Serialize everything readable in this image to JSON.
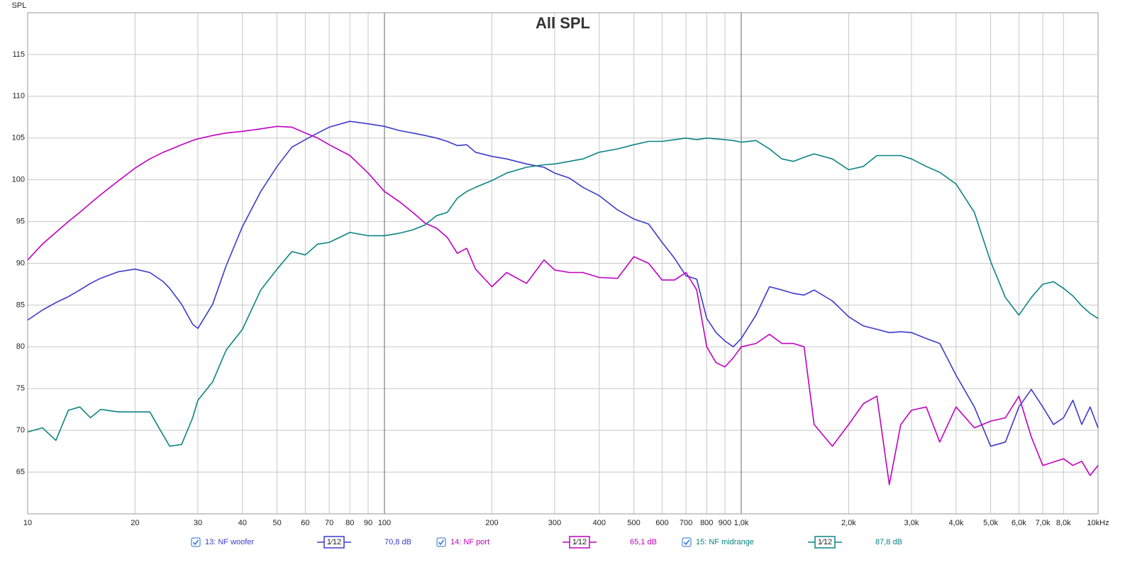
{
  "chart_data": {
    "type": "line",
    "title": "All SPL",
    "y_label": "SPL",
    "log_x": true,
    "grid": true,
    "xlim": [
      10,
      10000
    ],
    "ylim": [
      60,
      120
    ],
    "yticks": [
      65,
      70,
      75,
      80,
      85,
      90,
      95,
      100,
      105,
      110,
      115
    ],
    "xticks": [
      10,
      20,
      30,
      40,
      50,
      60,
      70,
      80,
      90,
      100,
      200,
      300,
      400,
      500,
      600,
      700,
      800,
      900,
      {
        "value": 1000,
        "label": "1,0k"
      },
      {
        "value": 2000,
        "label": "2,0k"
      },
      {
        "value": 3000,
        "label": "3,0k"
      },
      {
        "value": 4000,
        "label": "4,0k"
      },
      {
        "value": 5000,
        "label": "5,0k"
      },
      {
        "value": 6000,
        "label": "6,0k"
      },
      {
        "value": 7000,
        "label": "7,0k"
      },
      {
        "value": 8000,
        "label": "8,0k"
      },
      {
        "value": 10000,
        "label": "10kHz"
      }
    ],
    "x": [
      10,
      11,
      12,
      13,
      14,
      15,
      16,
      18,
      20,
      22,
      24,
      25,
      27,
      29,
      30,
      33,
      36,
      40,
      45,
      50,
      55,
      60,
      65,
      70,
      80,
      90,
      100,
      110,
      120,
      130,
      140,
      150,
      160,
      170,
      180,
      200,
      220,
      250,
      280,
      300,
      330,
      360,
      400,
      450,
      500,
      550,
      600,
      650,
      700,
      750,
      800,
      850,
      900,
      950,
      1000,
      1100,
      1200,
      1300,
      1400,
      1500,
      1600,
      1800,
      2000,
      2200,
      2400,
      2600,
      2800,
      3000,
      3300,
      3600,
      4000,
      4500,
      5000,
      5500,
      6000,
      6500,
      7000,
      7500,
      8000,
      8500,
      9000,
      9500,
      10000
    ],
    "series": [
      {
        "name": "13: NF woofer",
        "smoothing": "1⁄12",
        "level": "70,8 dB",
        "color": "#3b3bcc",
        "values": [
          83.2,
          84.4,
          85.3,
          86,
          86.8,
          87.6,
          88.2,
          89,
          89.3,
          88.9,
          87.8,
          87,
          85.1,
          82.7,
          82.2,
          85.1,
          89.7,
          94.4,
          98.6,
          101.6,
          103.9,
          104.8,
          105.6,
          106.3,
          107,
          106.7,
          106.4,
          105.9,
          105.6,
          105.3,
          105,
          104.6,
          104.1,
          104.2,
          103.3,
          102.8,
          102.5,
          101.9,
          101.5,
          100.8,
          100.2,
          99.1,
          98.1,
          96.4,
          95.3,
          94.7,
          92.5,
          90.6,
          88.5,
          88.1,
          83.4,
          81.7,
          80.7,
          80,
          81,
          83.8,
          87.2,
          86.8,
          86.4,
          86.2,
          86.8,
          85.5,
          83.6,
          82.5,
          82.1,
          81.7,
          81.8,
          81.7,
          81,
          80.4,
          76.6,
          72.8,
          68.1,
          68.6,
          72.8,
          74.9,
          72.8,
          70.7,
          71.5,
          73.6,
          70.7,
          72.8,
          70.3
        ]
      },
      {
        "name": "14: NF port",
        "smoothing": "1⁄12",
        "level": "65,1 dB",
        "color": "#c000c0",
        "values": [
          90.4,
          92.3,
          93.7,
          95,
          96.1,
          97.2,
          98.2,
          99.9,
          101.4,
          102.5,
          103.3,
          103.6,
          104.2,
          104.7,
          104.9,
          105.3,
          105.6,
          105.8,
          106.1,
          106.4,
          106.3,
          105.6,
          105,
          104.2,
          102.9,
          100.8,
          98.6,
          97.4,
          96.1,
          94.8,
          94.2,
          93.1,
          91.2,
          91.8,
          89.3,
          87.2,
          88.9,
          87.6,
          90.4,
          89.2,
          88.9,
          88.9,
          88.3,
          88.2,
          90.8,
          90,
          88,
          88,
          88.9,
          86.8,
          80,
          78.1,
          77.6,
          78.7,
          80,
          80.4,
          81.5,
          80.4,
          80.4,
          80,
          70.7,
          68.1,
          70.7,
          73.2,
          74.1,
          63.5,
          70.7,
          72.4,
          72.8,
          68.6,
          72.8,
          70.3,
          71.1,
          71.5,
          74.1,
          69.2,
          65.8,
          66.2,
          66.6,
          65.8,
          66.3,
          64.6,
          65.8
        ]
      },
      {
        "name": "15: NF midrange",
        "smoothing": "1⁄12",
        "level": "87,8 dB",
        "color": "#0b8484",
        "values": [
          69.8,
          70.3,
          68.8,
          72.4,
          72.8,
          71.5,
          72.5,
          72.2,
          72.2,
          72.2,
          69.4,
          68.1,
          68.3,
          71.5,
          73.6,
          75.8,
          79.6,
          82.1,
          86.8,
          89.3,
          91.4,
          91,
          92.3,
          92.5,
          93.7,
          93.3,
          93.3,
          93.6,
          94,
          94.6,
          95.7,
          96.1,
          97.8,
          98.6,
          99.1,
          99.9,
          100.8,
          101.5,
          101.8,
          101.9,
          102.2,
          102.5,
          103.3,
          103.7,
          104.2,
          104.6,
          104.6,
          104.8,
          105,
          104.8,
          105,
          104.9,
          104.8,
          104.7,
          104.5,
          104.7,
          103.7,
          102.5,
          102.2,
          102.7,
          103.1,
          102.5,
          101.2,
          101.6,
          102.9,
          102.9,
          102.9,
          102.5,
          101.6,
          100.9,
          99.5,
          96.1,
          90.2,
          85.9,
          83.8,
          85.9,
          87.5,
          87.8,
          87,
          86.1,
          84.9,
          84,
          83.4
        ]
      }
    ]
  }
}
